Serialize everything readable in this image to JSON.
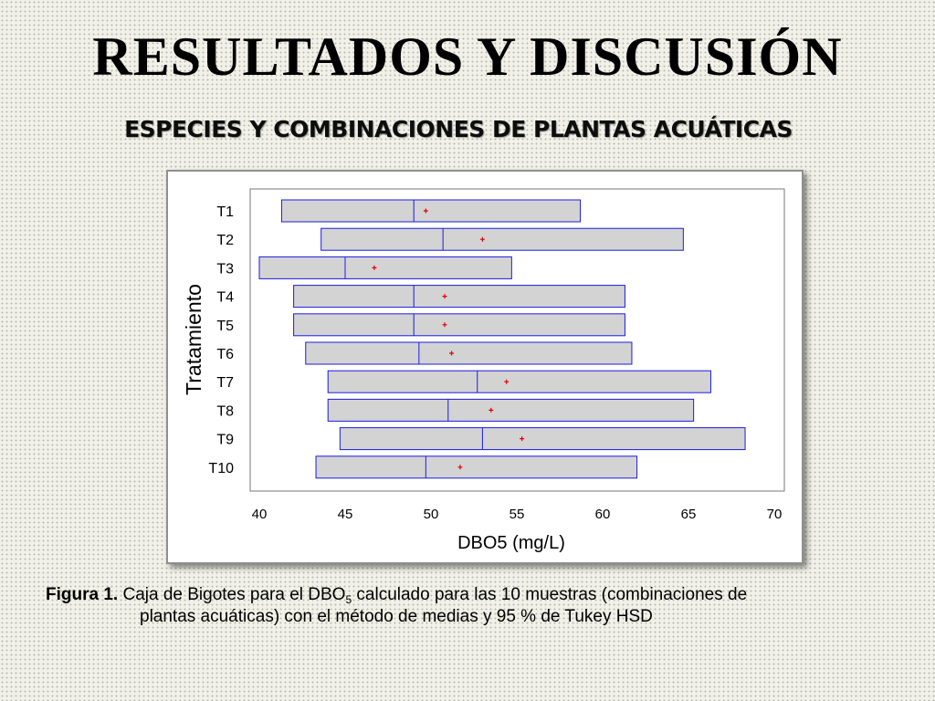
{
  "slide": {
    "title": "RESULTADOS Y DISCUSIÓN",
    "subtitle": "ESPECIES Y COMBINACIONES DE PLANTAS ACUÁTICAS"
  },
  "caption": {
    "label": "Figura 1.",
    "text_part1": "Caja de Bigotes para el DBO",
    "text_sub": "5",
    "text_part2": " calculado para las 10 muestras (combinaciones de",
    "text_line2": "plantas acuáticas) con el método de medias y 95 % de Tukey HSD"
  },
  "colors": {
    "box_fill": "#d3d3d3",
    "box_stroke": "#1c1ce0",
    "mean_marker": "#e00000"
  },
  "chart_data": {
    "type": "boxplot",
    "orientation": "horizontal",
    "xlabel": "DBO5 (mg/L)",
    "ylabel": "Tratamiento",
    "xlim": [
      40,
      70
    ],
    "xticks": [
      40,
      45,
      50,
      55,
      60,
      65,
      70
    ],
    "grid": false,
    "categories": [
      "T1",
      "T2",
      "T3",
      "T4",
      "T5",
      "T6",
      "T7",
      "T8",
      "T9",
      "T10"
    ],
    "boxes": [
      {
        "name": "T1",
        "min": 41.3,
        "median": 49.0,
        "mean": 49.7,
        "max": 58.7
      },
      {
        "name": "T2",
        "min": 43.6,
        "median": 50.7,
        "mean": 53.0,
        "max": 64.7
      },
      {
        "name": "T3",
        "min": 40.0,
        "median": 45.0,
        "mean": 46.7,
        "max": 54.7
      },
      {
        "name": "T4",
        "min": 42.0,
        "median": 49.0,
        "mean": 50.8,
        "max": 61.3
      },
      {
        "name": "T5",
        "min": 42.0,
        "median": 49.0,
        "mean": 50.8,
        "max": 61.3
      },
      {
        "name": "T6",
        "min": 42.7,
        "median": 49.3,
        "mean": 51.2,
        "max": 61.7
      },
      {
        "name": "T7",
        "min": 44.0,
        "median": 52.7,
        "mean": 54.4,
        "max": 66.3
      },
      {
        "name": "T8",
        "min": 44.0,
        "median": 51.0,
        "mean": 53.5,
        "max": 65.3
      },
      {
        "name": "T9",
        "min": 44.7,
        "median": 53.0,
        "mean": 55.3,
        "max": 68.3
      },
      {
        "name": "T10",
        "min": 43.3,
        "median": 49.7,
        "mean": 51.7,
        "max": 62.0
      }
    ]
  }
}
